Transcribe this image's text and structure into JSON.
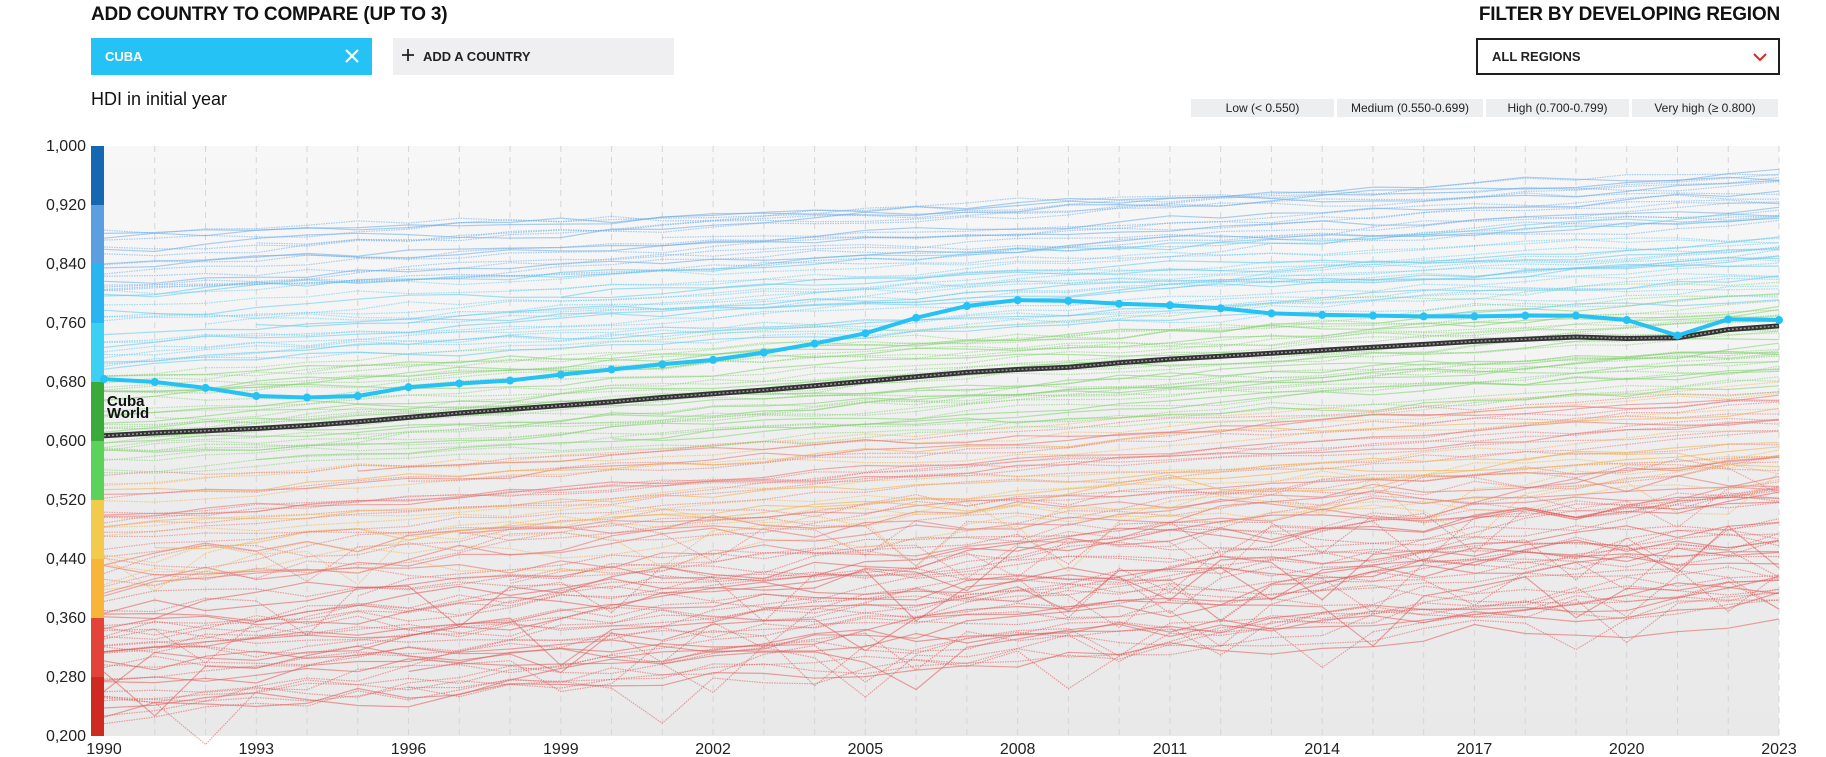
{
  "header": {
    "compare_title": "ADD COUNTRY TO COMPARE (UP TO 3)",
    "selected_country": "CUBA",
    "add_country_label": "ADD A COUNTRY",
    "filter_title": "FILTER BY DEVELOPING REGION",
    "region_value": "ALL REGIONS"
  },
  "subtitle": "HDI in initial year",
  "legend": [
    {
      "label": "Low (< 0.550)",
      "color": "#d42a1e"
    },
    {
      "label": "Medium (0.550-0.699)",
      "color": "#4fc83f"
    },
    {
      "label": "High (0.700-0.799)",
      "color": "#25c2f5"
    },
    {
      "label": "Very high (≥ 0.800)",
      "color": "#1c6fb5"
    }
  ],
  "colors": {
    "accent": "#25c2f5",
    "world_line": "#333333",
    "close_icon": "#ffffff",
    "chevron": "#d42a1e"
  },
  "icons": {
    "close": "close-icon",
    "plus": "plus-icon",
    "chevron": "chevron-down-icon"
  },
  "chart_data": {
    "type": "line",
    "title": "",
    "xlabel": "",
    "ylabel": "",
    "xlim": [
      1990,
      2023
    ],
    "ylim": [
      0.2,
      1.0
    ],
    "x_ticks": [
      1990,
      1993,
      1996,
      1999,
      2002,
      2005,
      2008,
      2011,
      2014,
      2017,
      2020,
      2023
    ],
    "x_tick_labels": [
      "1990",
      "1993",
      "1996",
      "1999",
      "2002",
      "2005",
      "2008",
      "2011",
      "2014",
      "2017",
      "2020",
      "2023"
    ],
    "y_ticks": [
      0.2,
      0.28,
      0.36,
      0.44,
      0.52,
      0.6,
      0.68,
      0.76,
      0.84,
      0.92,
      1.0
    ],
    "y_tick_labels": [
      "0,200",
      "0,280",
      "0,360",
      "0,440",
      "0,520",
      "0,600",
      "0,680",
      "0,760",
      "0,840",
      "0,920",
      "1,000"
    ],
    "grid": true,
    "color_bar": [
      {
        "from": 0.2,
        "to": 0.28,
        "color": "#cf2a1f"
      },
      {
        "from": 0.28,
        "to": 0.36,
        "color": "#e3443a"
      },
      {
        "from": 0.36,
        "to": 0.44,
        "color": "#f9b539"
      },
      {
        "from": 0.44,
        "to": 0.52,
        "color": "#f2cb4c"
      },
      {
        "from": 0.52,
        "to": 0.6,
        "color": "#5bd35b"
      },
      {
        "from": 0.6,
        "to": 0.68,
        "color": "#3aab3a"
      },
      {
        "from": 0.68,
        "to": 0.76,
        "color": "#3cd1f4"
      },
      {
        "from": 0.76,
        "to": 0.84,
        "color": "#29b6f0"
      },
      {
        "from": 0.84,
        "to": 0.92,
        "color": "#5b9fe0"
      },
      {
        "from": 0.92,
        "to": 1.0,
        "color": "#1467b0"
      }
    ],
    "years": [
      1990,
      1991,
      1992,
      1993,
      1994,
      1995,
      1996,
      1997,
      1998,
      1999,
      2000,
      2001,
      2002,
      2003,
      2004,
      2005,
      2006,
      2007,
      2008,
      2009,
      2010,
      2011,
      2012,
      2013,
      2014,
      2015,
      2016,
      2017,
      2018,
      2019,
      2020,
      2021,
      2022,
      2023
    ],
    "series": [
      {
        "name": "Cuba",
        "color": "#25c2f5",
        "values": [
          0.684,
          0.68,
          0.672,
          0.661,
          0.659,
          0.661,
          0.673,
          0.678,
          0.682,
          0.69,
          0.697,
          0.704,
          0.71,
          0.72,
          0.732,
          0.746,
          0.767,
          0.783,
          0.791,
          0.79,
          0.786,
          0.784,
          0.78,
          0.773,
          0.771,
          0.77,
          0.769,
          0.769,
          0.77,
          0.77,
          0.764,
          0.743,
          0.765,
          0.764
        ]
      },
      {
        "name": "World",
        "color": "#333333",
        "values": [
          0.607,
          0.611,
          0.614,
          0.617,
          0.621,
          0.626,
          0.632,
          0.638,
          0.643,
          0.648,
          0.653,
          0.659,
          0.664,
          0.669,
          0.675,
          0.681,
          0.687,
          0.693,
          0.697,
          0.7,
          0.706,
          0.711,
          0.715,
          0.719,
          0.723,
          0.727,
          0.731,
          0.735,
          0.738,
          0.741,
          0.739,
          0.74,
          0.751,
          0.756
        ]
      }
    ],
    "background_series": {
      "count": 160,
      "value_range_1990": [
        0.22,
        0.88
      ],
      "value_range_2023": [
        0.38,
        0.965
      ]
    }
  }
}
